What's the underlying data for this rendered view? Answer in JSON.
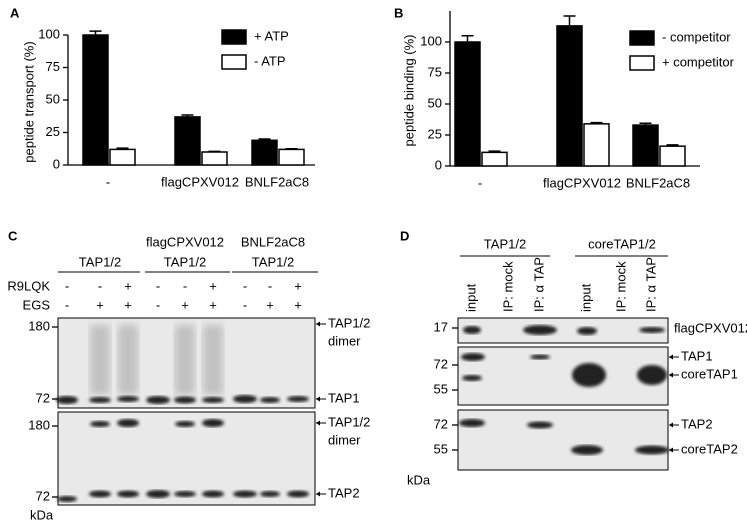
{
  "chart_data": [
    {
      "type": "bar",
      "label": "A",
      "y_label": "peptide transport (%)",
      "categories": [
        "-",
        "flagCPXV012",
        "BNLF2aC8"
      ],
      "series": [
        {
          "name": "+ ATP",
          "color": "#000000",
          "values": [
            100,
            37,
            19
          ],
          "errors": [
            3,
            1.5,
            1
          ]
        },
        {
          "name": "- ATP",
          "color": "#ffffff",
          "values": [
            12,
            10,
            12
          ],
          "errors": [
            1,
            0.5,
            0.5
          ]
        }
      ],
      "ylim": [
        0,
        100
      ],
      "yticks": [
        0,
        25,
        50,
        75,
        100
      ]
    },
    {
      "type": "bar",
      "label": "B",
      "y_label": "peptide binding (%)",
      "categories": [
        "-",
        "flagCPXV012",
        "BNLF2aC8"
      ],
      "series": [
        {
          "name": "- competitor",
          "color": "#000000",
          "values": [
            100,
            113,
            33
          ],
          "errors": [
            5,
            8,
            1.5
          ]
        },
        {
          "name": "+ competitor",
          "color": "#ffffff",
          "values": [
            11,
            34,
            16
          ],
          "errors": [
            1,
            1,
            1
          ]
        }
      ],
      "ylim": [
        0,
        125
      ],
      "yticks": [
        0,
        25,
        50,
        75,
        100
      ]
    }
  ],
  "blot_c": {
    "label": "C",
    "group_headers": [
      "TAP1/2",
      "flagCPXV012",
      "TAP1/2",
      "BNLF2aC8",
      "TAP1/2"
    ],
    "row_labels": [
      "R9LQK",
      "EGS"
    ],
    "r9lqk": [
      "-",
      "-",
      "+",
      "-",
      "-",
      "+",
      "-",
      "-",
      "+"
    ],
    "egs": [
      "-",
      "+",
      "+",
      "-",
      "+",
      "+",
      "-",
      "+",
      "+"
    ],
    "markers_top": [
      "180",
      "72"
    ],
    "markers_bottom": [
      "180",
      "72"
    ],
    "unit": "kDa",
    "right_labels_top": [
      "TAP1/2",
      "dimer",
      "TAP1"
    ],
    "right_labels_bottom": [
      "TAP1/2",
      "dimer",
      "TAP2"
    ]
  },
  "blot_d": {
    "label": "D",
    "group_headers": [
      "TAP1/2",
      "coreTAP1/2"
    ],
    "lanes": [
      "input",
      "IP: mock",
      "IP: α TAP",
      "input",
      "IP: mock",
      "IP: α TAP"
    ],
    "markers": [
      "17",
      "72",
      "55",
      "72",
      "55"
    ],
    "unit": "kDa",
    "right_labels": [
      "flagCPXV012",
      "TAP1",
      "coreTAP1",
      "TAP2",
      "coreTAP2"
    ]
  }
}
